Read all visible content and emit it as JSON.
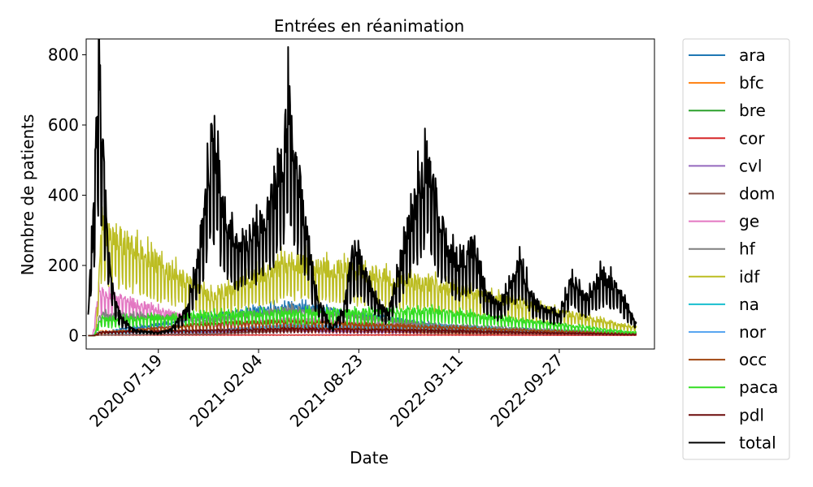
{
  "chart_data": {
    "type": "line",
    "title": "Entrées en réanimation",
    "xlabel": "Date",
    "ylabel": "Nombre de patients",
    "ylim": [
      -38,
      845
    ],
    "xlim": [
      "2020-02-26",
      "2023-04-05"
    ],
    "yticks": [
      0,
      200,
      400,
      600,
      800
    ],
    "xticks": [
      "2020-07-19",
      "2021-02-04",
      "2021-08-23",
      "2022-03-11",
      "2022-09-27"
    ],
    "legend_position": "outside-right",
    "grid": false,
    "series": [
      {
        "name": "ara",
        "color": "#1f77b4",
        "values_approx": [
          [
            "2020-03-19",
            8
          ],
          [
            "2020-11-05",
            55
          ],
          [
            "2021-04-10",
            85
          ],
          [
            "2022-01-20",
            30
          ],
          [
            "2023-02-15",
            5
          ]
        ]
      },
      {
        "name": "bfc",
        "color": "#ff7f0e",
        "values_approx": [
          [
            "2020-03-25",
            12
          ],
          [
            "2020-11-05",
            15
          ],
          [
            "2021-04-10",
            15
          ],
          [
            "2022-01-20",
            8
          ],
          [
            "2023-02-15",
            2
          ]
        ]
      },
      {
        "name": "bre",
        "color": "#2ca02c",
        "values_approx": [
          [
            "2020-03-25",
            10
          ],
          [
            "2020-11-05",
            12
          ],
          [
            "2021-04-10",
            25
          ],
          [
            "2022-01-20",
            15
          ],
          [
            "2023-02-15",
            5
          ]
        ]
      },
      {
        "name": "cor",
        "color": "#d62728",
        "values_approx": [
          [
            "2020-03-25",
            2
          ],
          [
            "2020-11-05",
            2
          ],
          [
            "2021-04-10",
            2
          ],
          [
            "2022-01-20",
            2
          ],
          [
            "2023-02-15",
            1
          ]
        ]
      },
      {
        "name": "cvl",
        "color": "#9467bd",
        "values_approx": [
          [
            "2020-03-25",
            10
          ],
          [
            "2020-11-05",
            10
          ],
          [
            "2021-04-10",
            15
          ],
          [
            "2022-01-20",
            10
          ],
          [
            "2023-02-15",
            3
          ]
        ]
      },
      {
        "name": "dom",
        "color": "#8c564b",
        "values_approx": [
          [
            "2020-03-25",
            2
          ],
          [
            "2020-11-05",
            5
          ],
          [
            "2021-08-23",
            25
          ],
          [
            "2022-01-20",
            10
          ],
          [
            "2023-02-15",
            3
          ]
        ]
      },
      {
        "name": "ge",
        "color": "#e377c2",
        "values_approx": [
          [
            "2020-03-22",
            120
          ],
          [
            "2020-11-05",
            30
          ],
          [
            "2021-04-10",
            45
          ],
          [
            "2022-01-20",
            25
          ],
          [
            "2023-02-15",
            6
          ]
        ]
      },
      {
        "name": "hf",
        "color": "#7f7f7f",
        "values_approx": [
          [
            "2020-03-25",
            60
          ],
          [
            "2020-11-05",
            45
          ],
          [
            "2021-04-10",
            75
          ],
          [
            "2022-01-20",
            30
          ],
          [
            "2023-02-15",
            8
          ]
        ]
      },
      {
        "name": "idf",
        "color": "#bcbd22",
        "values_approx": [
          [
            "2020-03-28",
            305
          ],
          [
            "2020-11-05",
            110
          ],
          [
            "2021-04-10",
            210
          ],
          [
            "2022-01-10",
            145
          ],
          [
            "2023-02-15",
            25
          ]
        ]
      },
      {
        "name": "na",
        "color": "#17becf",
        "values_approx": [
          [
            "2020-03-25",
            8
          ],
          [
            "2020-11-05",
            15
          ],
          [
            "2021-04-10",
            25
          ],
          [
            "2022-01-20",
            25
          ],
          [
            "2023-02-15",
            5
          ]
        ]
      },
      {
        "name": "nor",
        "color": "#58a6f0",
        "values_approx": [
          [
            "2020-03-25",
            10
          ],
          [
            "2020-11-05",
            15
          ],
          [
            "2021-04-10",
            30
          ],
          [
            "2022-01-20",
            20
          ],
          [
            "2023-02-15",
            5
          ]
        ]
      },
      {
        "name": "occ",
        "color": "#a0450f",
        "values_approx": [
          [
            "2020-03-25",
            8
          ],
          [
            "2020-11-05",
            35
          ],
          [
            "2021-04-10",
            40
          ],
          [
            "2022-01-20",
            25
          ],
          [
            "2023-02-15",
            6
          ]
        ]
      },
      {
        "name": "paca",
        "color": "#33dd22",
        "values_approx": [
          [
            "2020-03-25",
            45
          ],
          [
            "2020-11-05",
            60
          ],
          [
            "2021-04-10",
            65
          ],
          [
            "2022-01-20",
            70
          ],
          [
            "2023-02-15",
            10
          ]
        ]
      },
      {
        "name": "pdl",
        "color": "#6b0a0a",
        "values_approx": [
          [
            "2020-03-25",
            10
          ],
          [
            "2020-11-05",
            15
          ],
          [
            "2021-04-10",
            20
          ],
          [
            "2022-01-20",
            15
          ],
          [
            "2023-02-15",
            4
          ]
        ]
      },
      {
        "name": "total",
        "color": "#000000",
        "values_approx": [
          [
            "2020-03-01",
            60
          ],
          [
            "2020-03-10",
            300
          ],
          [
            "2020-03-18",
            600
          ],
          [
            "2020-03-23",
            772
          ],
          [
            "2020-03-30",
            520
          ],
          [
            "2020-04-08",
            300
          ],
          [
            "2020-04-20",
            120
          ],
          [
            "2020-05-05",
            50
          ],
          [
            "2020-06-01",
            15
          ],
          [
            "2020-07-19",
            8
          ],
          [
            "2020-08-15",
            20
          ],
          [
            "2020-09-15",
            80
          ],
          [
            "2020-10-10",
            250
          ],
          [
            "2020-10-25",
            430
          ],
          [
            "2020-11-03",
            540
          ],
          [
            "2020-11-15",
            480
          ],
          [
            "2020-12-01",
            300
          ],
          [
            "2021-01-01",
            260
          ],
          [
            "2021-02-04",
            300
          ],
          [
            "2021-03-01",
            380
          ],
          [
            "2021-03-25",
            520
          ],
          [
            "2021-04-05",
            675
          ],
          [
            "2021-04-20",
            500
          ],
          [
            "2021-05-10",
            300
          ],
          [
            "2021-06-01",
            100
          ],
          [
            "2021-07-01",
            20
          ],
          [
            "2021-07-25",
            80
          ],
          [
            "2021-08-10",
            235
          ],
          [
            "2021-08-23",
            230
          ],
          [
            "2021-09-20",
            120
          ],
          [
            "2021-10-20",
            60
          ],
          [
            "2021-12-01",
            300
          ],
          [
            "2021-12-20",
            420
          ],
          [
            "2022-01-05",
            490
          ],
          [
            "2022-01-20",
            400
          ],
          [
            "2022-02-15",
            250
          ],
          [
            "2022-03-11",
            200
          ],
          [
            "2022-04-10",
            265
          ],
          [
            "2022-05-01",
            130
          ],
          [
            "2022-06-01",
            80
          ],
          [
            "2022-07-10",
            210
          ],
          [
            "2022-08-10",
            90
          ],
          [
            "2022-09-27",
            60
          ],
          [
            "2022-10-20",
            155
          ],
          [
            "2022-11-20",
            100
          ],
          [
            "2022-12-20",
            175
          ],
          [
            "2023-01-20",
            140
          ],
          [
            "2023-02-25",
            40
          ]
        ]
      }
    ]
  }
}
